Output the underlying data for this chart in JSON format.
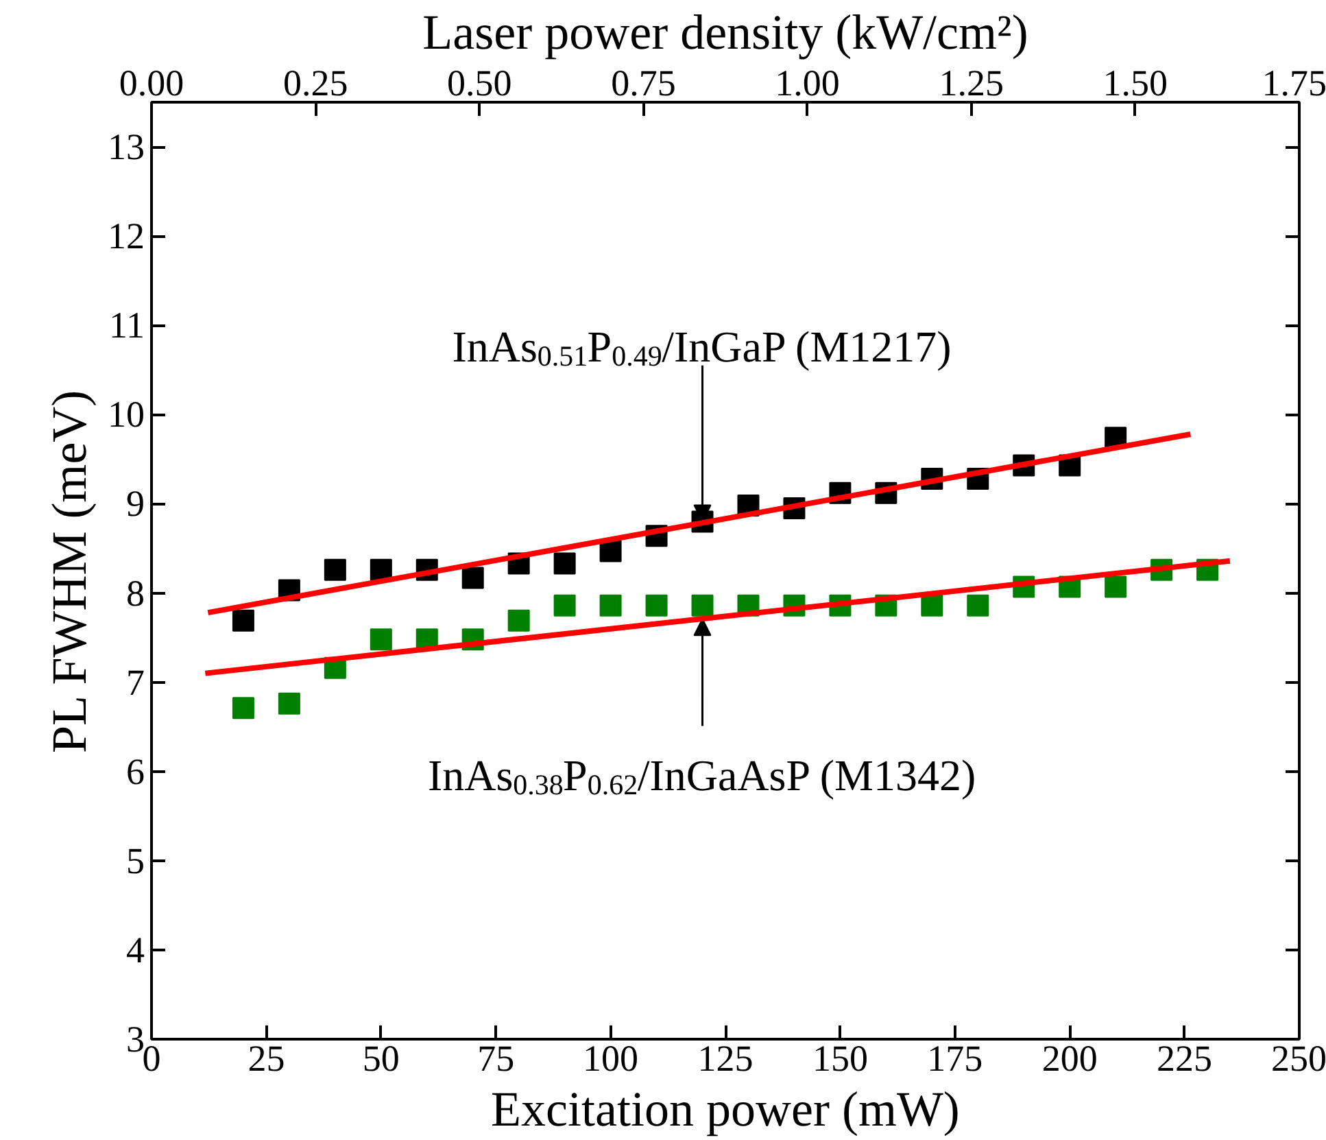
{
  "chart_data": {
    "type": "scatter",
    "xlabel": "Excitation power (mW)",
    "ylabel": "PL FWHM (meV)",
    "x2label": "Laser power density (kW/cm²)",
    "xlim": [
      0,
      250
    ],
    "xticks": [
      0,
      25,
      50,
      75,
      100,
      125,
      150,
      175,
      200,
      225,
      250
    ],
    "x2lim": [
      0,
      1.75
    ],
    "x2ticks": [
      {
        "value": 0,
        "label": "0.00"
      },
      0.25,
      {
        "value": 0.5,
        "label": "0.50"
      },
      0.75,
      {
        "value": 1,
        "label": "1.00"
      },
      1.25,
      {
        "value": 1.5,
        "label": "1.50"
      },
      1.75
    ],
    "ylim": [
      3,
      13.5
    ],
    "yticks": [
      3,
      4,
      5,
      6,
      7,
      8,
      9,
      10,
      11,
      12,
      13
    ],
    "grid": false,
    "series": [
      {
        "marker": "square",
        "color": "#000000",
        "x": [
          20,
          30,
          40,
          50,
          60,
          70,
          80,
          90,
          100,
          110,
          120,
          130,
          140,
          150,
          160,
          170,
          180,
          190,
          200,
          210
        ],
        "values": [
          7.69,
          8.03,
          8.26,
          8.26,
          8.26,
          8.17,
          8.33,
          8.33,
          8.47,
          8.64,
          8.8,
          8.98,
          8.95,
          9.12,
          9.12,
          9.28,
          9.28,
          9.43,
          9.43,
          9.74
        ]
      },
      {
        "marker": "square",
        "color": "#008000",
        "x": [
          20,
          30,
          40,
          50,
          60,
          70,
          80,
          90,
          100,
          110,
          120,
          130,
          140,
          150,
          160,
          170,
          180,
          190,
          200,
          210,
          220,
          230
        ],
        "values": [
          6.71,
          6.76,
          7.16,
          7.48,
          7.48,
          7.48,
          7.69,
          7.86,
          7.86,
          7.86,
          7.86,
          7.86,
          7.86,
          7.86,
          7.86,
          7.86,
          7.86,
          8.07,
          8.07,
          8.07,
          8.26,
          8.26
        ]
      },
      {
        "type": "line",
        "color": "#ff0000",
        "x": [
          12.3,
          226.3
        ],
        "values": [
          7.78,
          9.78
        ]
      },
      {
        "type": "line",
        "color": "#ff0000",
        "x": [
          11.7,
          234.9
        ],
        "values": [
          7.1,
          8.36
        ]
      }
    ],
    "annotations": [
      {
        "text": "InAs$_{0.51}$P$_{0.49}$/InGaP (M1217)",
        "x": 120,
        "y": 8.8
      },
      {
        "text": "InAs$_{0.38}$P$_{0.62}$/InGaAsP (M1342)",
        "x": 120,
        "y": 7.71
      }
    ]
  }
}
